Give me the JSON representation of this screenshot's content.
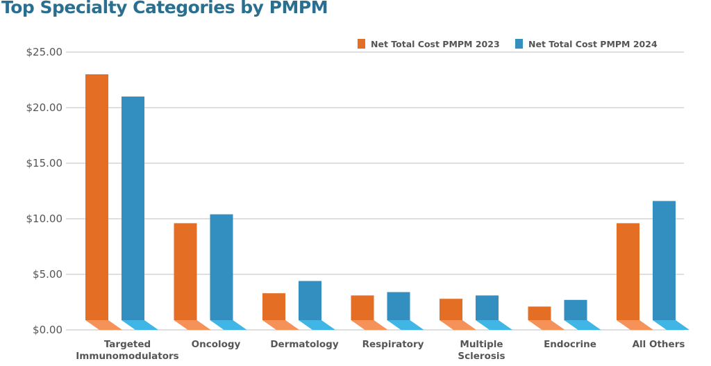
{
  "chart_data": {
    "type": "bar",
    "title": "Top Specialty Categories by PMPM",
    "categories": [
      [
        "Targeted",
        "Immunomodulators"
      ],
      [
        "Oncology"
      ],
      [
        "Dermatology"
      ],
      [
        "Respiratory"
      ],
      [
        "Multiple",
        "Sclerosis"
      ],
      [
        "Endocrine"
      ],
      [
        "All Others"
      ]
    ],
    "series": [
      {
        "name": "Net Total Cost PMPM 2023",
        "color": "#e46f24",
        "floor_color": "#f4925a",
        "values": [
          23.0,
          9.6,
          3.3,
          3.1,
          2.8,
          2.1,
          9.6
        ]
      },
      {
        "name": "Net Total Cost PMPM 2024",
        "color": "#338fbf",
        "floor_color": "#3fb6e6",
        "values": [
          21.0,
          10.4,
          4.4,
          3.4,
          3.1,
          2.7,
          11.6
        ]
      }
    ],
    "yticks": [
      "$0.00",
      "$5.00",
      "$10.00",
      "$15.00",
      "$20.00",
      "$25.00"
    ],
    "ylim": [
      0,
      25
    ],
    "grid": true,
    "legend": "top-right",
    "title_color": "#2b6f8f"
  }
}
